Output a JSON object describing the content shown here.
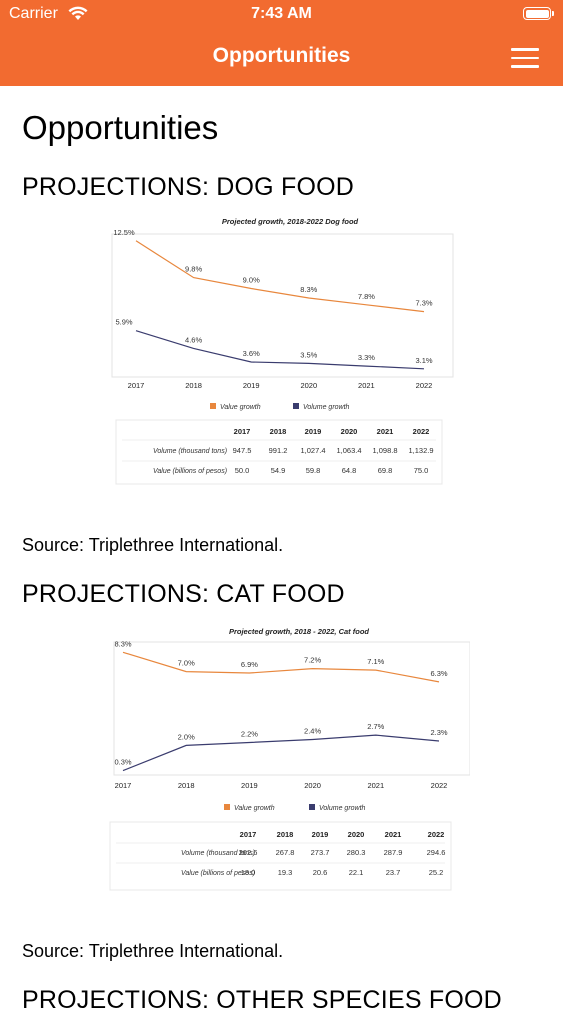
{
  "status_bar": {
    "carrier": "Carrier",
    "time": "7:43 AM"
  },
  "nav": {
    "title": "Opportunities"
  },
  "page": {
    "title": "Opportunities"
  },
  "sections": [
    {
      "title": "PROJECTIONS: DOG FOOD",
      "source": "Source: Triplethree International."
    },
    {
      "title": "PROJECTIONS: CAT FOOD",
      "source": "Source: Triplethree International."
    },
    {
      "title": "PROJECTIONS: OTHER SPECIES FOOD"
    }
  ],
  "chart_data": [
    {
      "type": "line",
      "title": "Projected growth, 2018-2022 Dog food",
      "x": [
        "2017",
        "2018",
        "2019",
        "2020",
        "2021",
        "2022"
      ],
      "series": [
        {
          "name": "Value growth",
          "color": "#e8873d",
          "values": [
            12.5,
            9.8,
            9.0,
            8.3,
            7.8,
            7.3
          ],
          "labels": [
            "12.5%",
            "9.8%",
            "9.0%",
            "8.3%",
            "7.8%",
            "7.3%"
          ]
        },
        {
          "name": "Volume growth",
          "color": "#3a3c6e",
          "values": [
            5.9,
            4.6,
            3.6,
            3.5,
            3.3,
            3.1
          ],
          "labels": [
            "5.9%",
            "4.6%",
            "3.6%",
            "3.5%",
            "3.3%",
            "3.1%"
          ]
        }
      ],
      "ylim": [
        2.5,
        13
      ],
      "grid": false,
      "legend": "bottom",
      "table": {
        "columns": [
          "2017",
          "2018",
          "2019",
          "2020",
          "2021",
          "2022"
        ],
        "rows": [
          {
            "label": "Volume (thousand tons)",
            "values": [
              "947.5",
              "991.2",
              "1,027.4",
              "1,063.4",
              "1,098.8",
              "1,132.9"
            ]
          },
          {
            "label": "Value (billions of pesos)",
            "values": [
              "50.0",
              "54.9",
              "59.8",
              "64.8",
              "69.8",
              "75.0"
            ]
          }
        ]
      }
    },
    {
      "type": "line",
      "title": "Projected growth, 2018 - 2022, Cat food",
      "x": [
        "2017",
        "2018",
        "2019",
        "2020",
        "2021",
        "2022"
      ],
      "series": [
        {
          "name": "Value growth",
          "color": "#e8873d",
          "values": [
            8.3,
            7.0,
            6.9,
            7.2,
            7.1,
            6.3
          ],
          "labels": [
            "8.3%",
            "7.0%",
            "6.9%",
            "7.2%",
            "7.1%",
            "6.3%"
          ]
        },
        {
          "name": "Volume growth",
          "color": "#3a3c6e",
          "values": [
            0.3,
            2.0,
            2.2,
            2.4,
            2.7,
            2.3
          ],
          "labels": [
            "0.3%",
            "2.0%",
            "2.2%",
            "2.4%",
            "2.7%",
            "2.3%"
          ]
        }
      ],
      "ylim": [
        0,
        9
      ],
      "grid": false,
      "legend": "bottom",
      "table": {
        "columns": [
          "2017",
          "2018",
          "2019",
          "2020",
          "2021",
          "2022"
        ],
        "rows": [
          {
            "label": "Volume (thousand tons)",
            "values": [
              "262.6",
              "267.8",
              "273.7",
              "280.3",
              "287.9",
              "294.6"
            ]
          },
          {
            "label": "Value (billions of pesos)",
            "values": [
              "18.0",
              "19.3",
              "20.6",
              "22.1",
              "23.7",
              "25.2"
            ]
          }
        ]
      }
    }
  ]
}
